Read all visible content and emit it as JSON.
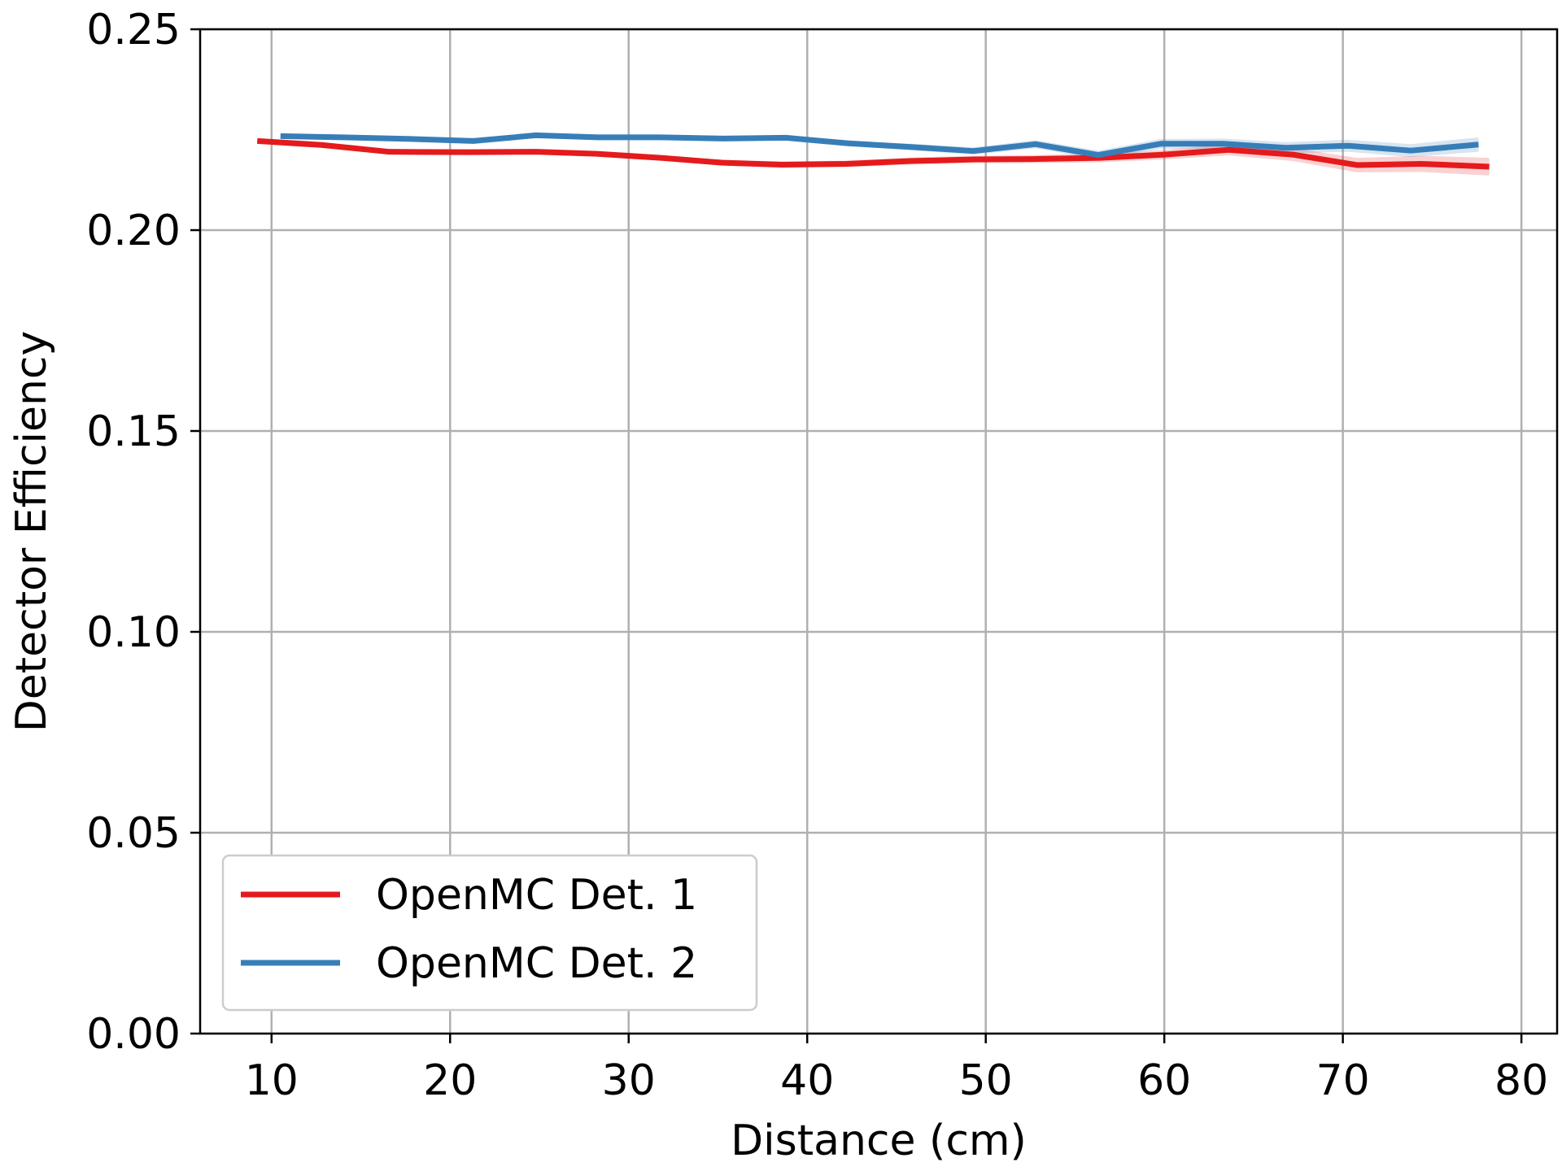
{
  "chart_data": {
    "type": "line",
    "xlabel": "Distance (cm)",
    "ylabel": "Detector Efficiency",
    "xlim": [
      6,
      82
    ],
    "ylim": [
      0.0,
      0.25
    ],
    "xticks": [
      "10",
      "20",
      "30",
      "40",
      "50",
      "60",
      "70",
      "80"
    ],
    "xtick_values": [
      10,
      20,
      30,
      40,
      50,
      60,
      70,
      80
    ],
    "yticks": [
      "0.00",
      "0.05",
      "0.10",
      "0.15",
      "0.20",
      "0.25"
    ],
    "ytick_values": [
      0.0,
      0.05,
      0.1,
      0.15,
      0.2,
      0.25
    ],
    "grid": true,
    "legend_position": "lower-left",
    "series": [
      {
        "name": "OpenMC Det. 1",
        "color": "#e41a1c",
        "x": [
          9.2,
          12.8,
          16.6,
          21.0,
          24.8,
          28.2,
          31.8,
          35.2,
          38.6,
          42.2,
          45.8,
          49.4,
          52.8,
          56.4,
          60.0,
          63.6,
          67.2,
          70.8,
          74.4,
          78.2
        ],
        "y": [
          0.2222,
          0.2212,
          0.2195,
          0.2194,
          0.2195,
          0.219,
          0.218,
          0.2168,
          0.2163,
          0.2165,
          0.2172,
          0.2176,
          0.2177,
          0.218,
          0.2188,
          0.22,
          0.2188,
          0.2162,
          0.2165,
          0.2158
        ],
        "band": [
          0.0003,
          0.0003,
          0.0004,
          0.0004,
          0.0004,
          0.0005,
          0.0006,
          0.0007,
          0.0008,
          0.0008,
          0.0009,
          0.0009,
          0.001,
          0.0011,
          0.0012,
          0.0014,
          0.0016,
          0.0018,
          0.002,
          0.0022
        ]
      },
      {
        "name": "OpenMC Det. 2",
        "color": "#377eb8",
        "x": [
          10.5,
          14.0,
          17.8,
          21.3,
          24.8,
          28.3,
          31.8,
          35.3,
          38.8,
          42.3,
          45.8,
          49.3,
          52.8,
          56.3,
          59.8,
          63.3,
          66.8,
          70.3,
          73.8,
          77.6
        ],
        "y": [
          0.2234,
          0.2231,
          0.2227,
          0.2222,
          0.2236,
          0.2231,
          0.2231,
          0.2228,
          0.223,
          0.2216,
          0.2207,
          0.2197,
          0.2214,
          0.2187,
          0.2215,
          0.2215,
          0.2205,
          0.221,
          0.2198,
          0.2213
        ],
        "band": [
          0.0003,
          0.0003,
          0.0004,
          0.0004,
          0.0004,
          0.0005,
          0.0005,
          0.0006,
          0.0006,
          0.0007,
          0.0008,
          0.0009,
          0.001,
          0.0011,
          0.0012,
          0.0013,
          0.0014,
          0.0015,
          0.0016,
          0.0018
        ]
      }
    ]
  }
}
